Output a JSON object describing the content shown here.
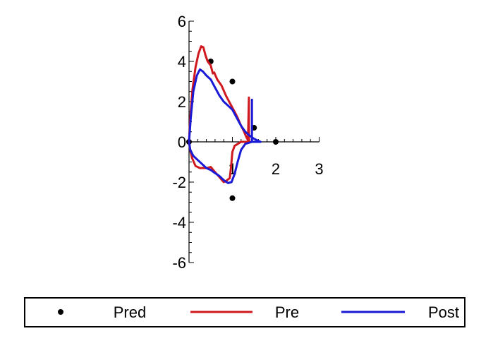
{
  "chart_data": {
    "type": "scatter",
    "title": "",
    "xlabel": "",
    "ylabel": "",
    "xlim": [
      0,
      3
    ],
    "ylim": [
      -6,
      6
    ],
    "xticks": [
      0,
      1,
      2,
      3
    ],
    "yticks": [
      -6,
      -4,
      -2,
      0,
      2,
      4,
      6
    ],
    "grid": false,
    "legend_position": "bottom",
    "series": [
      {
        "name": "Pred",
        "kind": "points",
        "color": "#000000",
        "points": [
          [
            0,
            0
          ],
          [
            0.5,
            4.0
          ],
          [
            1.0,
            3.0
          ],
          [
            1.5,
            0.7
          ],
          [
            2.0,
            0
          ],
          [
            1.0,
            -2.8
          ]
        ]
      },
      {
        "name": "Pre",
        "kind": "line",
        "color": "#d0181f",
        "points": [
          [
            0.0,
            0.0
          ],
          [
            0.03,
            1.2
          ],
          [
            0.08,
            2.6
          ],
          [
            0.15,
            3.7
          ],
          [
            0.22,
            4.4
          ],
          [
            0.28,
            4.75
          ],
          [
            0.33,
            4.7
          ],
          [
            0.38,
            4.3
          ],
          [
            0.43,
            4.0
          ],
          [
            0.5,
            3.8
          ],
          [
            0.55,
            3.4
          ],
          [
            0.58,
            3.45
          ],
          [
            0.65,
            3.1
          ],
          [
            0.75,
            2.8
          ],
          [
            0.85,
            2.3
          ],
          [
            0.95,
            1.9
          ],
          [
            1.05,
            1.5
          ],
          [
            1.12,
            1.2
          ],
          [
            1.2,
            0.8
          ],
          [
            1.26,
            0.55
          ],
          [
            1.3,
            0.35
          ],
          [
            1.33,
            0.2
          ],
          [
            1.36,
            0.08
          ],
          [
            1.38,
            2.2
          ],
          [
            1.38,
            0.05
          ],
          [
            1.4,
            0.0
          ],
          [
            1.2,
            0.0
          ],
          [
            1.05,
            -0.2
          ],
          [
            1.0,
            -0.5
          ],
          [
            0.97,
            -1.2
          ],
          [
            0.94,
            -1.8
          ],
          [
            0.85,
            -1.95
          ],
          [
            0.8,
            -2.0
          ],
          [
            0.72,
            -1.8
          ],
          [
            0.6,
            -1.5
          ],
          [
            0.5,
            -1.25
          ],
          [
            0.42,
            -1.3
          ],
          [
            0.35,
            -1.3
          ],
          [
            0.25,
            -1.3
          ],
          [
            0.15,
            -1.2
          ],
          [
            0.07,
            -0.8
          ],
          [
            0.02,
            -0.3
          ],
          [
            0.0,
            0.0
          ]
        ]
      },
      {
        "name": "Post",
        "kind": "line",
        "color": "#1a1ad6",
        "points": [
          [
            0.0,
            0.0
          ],
          [
            0.04,
            1.2
          ],
          [
            0.1,
            2.5
          ],
          [
            0.18,
            3.3
          ],
          [
            0.25,
            3.6
          ],
          [
            0.32,
            3.5
          ],
          [
            0.4,
            3.3
          ],
          [
            0.5,
            3.1
          ],
          [
            0.6,
            2.7
          ],
          [
            0.7,
            2.3
          ],
          [
            0.8,
            2.0
          ],
          [
            0.9,
            1.8
          ],
          [
            1.0,
            1.6
          ],
          [
            1.1,
            1.2
          ],
          [
            1.2,
            0.8
          ],
          [
            1.3,
            0.5
          ],
          [
            1.4,
            0.3
          ],
          [
            1.5,
            0.15
          ],
          [
            1.6,
            0.05
          ],
          [
            1.65,
            0.0
          ],
          [
            1.45,
            0.0
          ],
          [
            1.45,
            2.1
          ],
          [
            1.45,
            0.0
          ],
          [
            1.3,
            -0.1
          ],
          [
            1.2,
            -0.4
          ],
          [
            1.12,
            -1.0
          ],
          [
            1.05,
            -1.6
          ],
          [
            0.98,
            -2.0
          ],
          [
            0.9,
            -2.05
          ],
          [
            0.8,
            -1.9
          ],
          [
            0.7,
            -1.7
          ],
          [
            0.6,
            -1.55
          ],
          [
            0.5,
            -1.4
          ],
          [
            0.4,
            -1.3
          ],
          [
            0.3,
            -1.1
          ],
          [
            0.2,
            -0.9
          ],
          [
            0.1,
            -0.7
          ],
          [
            0.03,
            -0.4
          ],
          [
            0.0,
            0.0
          ]
        ]
      }
    ]
  }
}
